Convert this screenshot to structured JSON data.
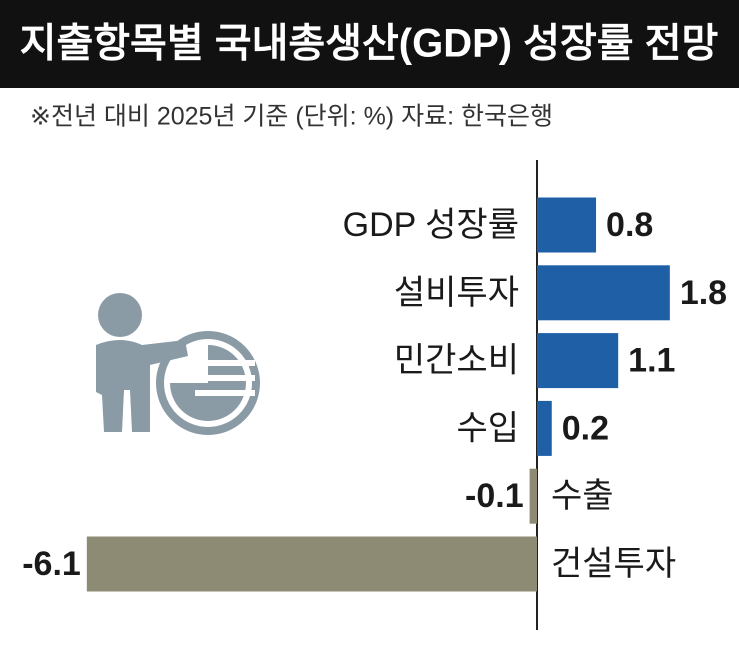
{
  "chart_data": {
    "type": "bar",
    "orientation": "horizontal",
    "title": "지출항목별 국내총생산(GDP) 성장률 전망",
    "subtitle": "※전년 대비 2025년 기준  (단위: %)  자료: 한국은행",
    "categories": [
      "GDP 성장률",
      "설비투자",
      "민간소비",
      "수입",
      "수출",
      "건설투자"
    ],
    "values": [
      0.8,
      1.8,
      1.1,
      0.2,
      -0.1,
      -6.1
    ],
    "colors": [
      "#1f5fa6",
      "#1f5fa6",
      "#1f5fa6",
      "#1f5fa6",
      "#8d8b74",
      "#8d8b74"
    ]
  }
}
